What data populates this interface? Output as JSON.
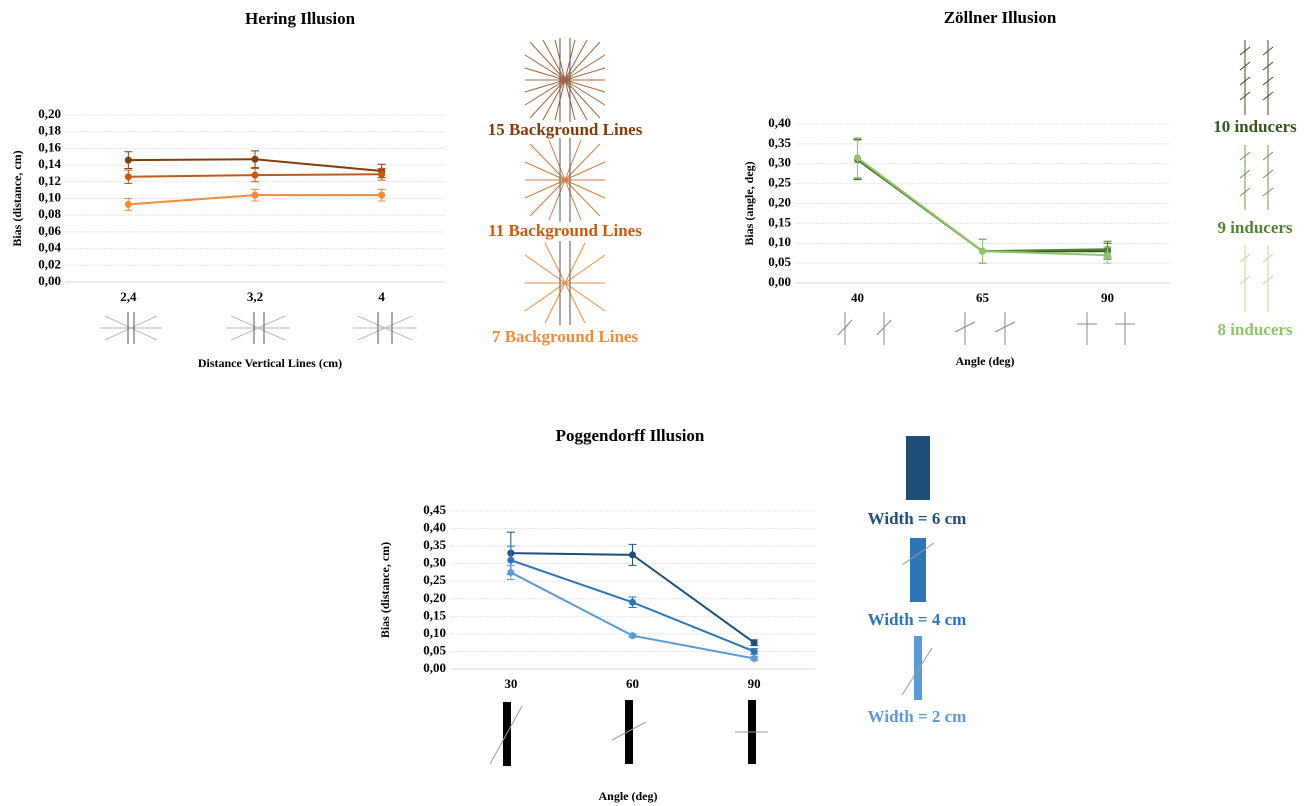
{
  "chart_data": [
    {
      "type": "line",
      "title": "Hering Illusion",
      "x_label": "Distance Vertical Lines (cm)",
      "y_label": "Bias (distance, cm)",
      "categories": [
        "2,4",
        "3,2",
        "4"
      ],
      "ylim": [
        0,
        0.2
      ],
      "yticks": [
        {
          "value": 0,
          "label": "0,00"
        },
        {
          "value": 0.02,
          "label": "0,02"
        },
        {
          "value": 0.04,
          "label": "0,04"
        },
        {
          "value": 0.06,
          "label": "0,06"
        },
        {
          "value": 0.08,
          "label": "0,08"
        },
        {
          "value": 0.1,
          "label": "0,10"
        },
        {
          "value": 0.12,
          "label": "0,12"
        },
        {
          "value": 0.14,
          "label": "0,14"
        },
        {
          "value": 0.16,
          "label": "0,16"
        },
        {
          "value": 0.18,
          "label": "0,18"
        },
        {
          "value": 0.2,
          "label": "0,20"
        }
      ],
      "grid": true,
      "series": [
        {
          "name": "15 Background Lines",
          "color": "#843c0c",
          "values": [
            0.146,
            0.147,
            0.133
          ],
          "errors": [
            0.01,
            0.01,
            0.008
          ]
        },
        {
          "name": "11 Background Lines",
          "color": "#c55a11",
          "values": [
            0.126,
            0.128,
            0.129
          ],
          "errors": [
            0.008,
            0.008,
            0.007
          ]
        },
        {
          "name": "7 Background Lines",
          "color": "#f08a3c",
          "values": [
            0.093,
            0.104,
            0.104
          ],
          "errors": [
            0.007,
            0.007,
            0.007
          ]
        }
      ]
    },
    {
      "type": "line",
      "title": "Zöllner Illusion",
      "x_label": "Angle (deg)",
      "y_label": "Bias (angle, deg)",
      "categories": [
        "40",
        "65",
        "90"
      ],
      "ylim": [
        0,
        0.4
      ],
      "yticks": [
        {
          "value": 0,
          "label": "0,00"
        },
        {
          "value": 0.05,
          "label": "0,05"
        },
        {
          "value": 0.1,
          "label": "0,10"
        },
        {
          "value": 0.15,
          "label": "0,15"
        },
        {
          "value": 0.2,
          "label": "0,20"
        },
        {
          "value": 0.25,
          "label": "0,25"
        },
        {
          "value": 0.3,
          "label": "0,30"
        },
        {
          "value": 0.35,
          "label": "0,35"
        },
        {
          "value": 0.4,
          "label": "0,40"
        }
      ],
      "grid": true,
      "series": [
        {
          "name": "10 inducers",
          "color": "#375623",
          "values": [
            0.31,
            0.08,
            0.08
          ],
          "errors": [
            0.05,
            0.03,
            0.02
          ]
        },
        {
          "name": "9 inducers",
          "color": "#548235",
          "values": [
            0.312,
            0.08,
            0.085
          ],
          "errors": [
            0.05,
            0.03,
            0.02
          ]
        },
        {
          "name": "8 inducers",
          "color": "#8fc46a",
          "values": [
            0.315,
            0.08,
            0.07
          ],
          "errors": [
            0.05,
            0.03,
            0.02
          ]
        }
      ]
    },
    {
      "type": "line",
      "title": "Poggendorff Illusion",
      "x_label": "Angle (deg)",
      "y_label": "Bias (distance, cm)",
      "categories": [
        "30",
        "60",
        "90"
      ],
      "ylim": [
        0,
        0.45
      ],
      "yticks": [
        {
          "value": 0,
          "label": "0,00"
        },
        {
          "value": 0.05,
          "label": "0,05"
        },
        {
          "value": 0.1,
          "label": "0,10"
        },
        {
          "value": 0.15,
          "label": "0,15"
        },
        {
          "value": 0.2,
          "label": "0,20"
        },
        {
          "value": 0.25,
          "label": "0,25"
        },
        {
          "value": 0.3,
          "label": "0,30"
        },
        {
          "value": 0.35,
          "label": "0,35"
        },
        {
          "value": 0.4,
          "label": "0,40"
        },
        {
          "value": 0.45,
          "label": "0,45"
        }
      ],
      "grid": true,
      "series": [
        {
          "name": "Width = 6 cm",
          "color": "#1f4e79",
          "values": [
            0.33,
            0.325,
            0.075
          ],
          "errors": [
            0.06,
            0.03,
            0.008
          ]
        },
        {
          "name": "Width = 4 cm",
          "color": "#2e75b6",
          "values": [
            0.31,
            0.19,
            0.05
          ],
          "errors": [
            0.04,
            0.015,
            0.008
          ]
        },
        {
          "name": "Width = 2 cm",
          "color": "#5b9bd5",
          "values": [
            0.275,
            0.095,
            0.03
          ],
          "errors": [
            0.02,
            0.005,
            0.005
          ]
        }
      ]
    }
  ]
}
